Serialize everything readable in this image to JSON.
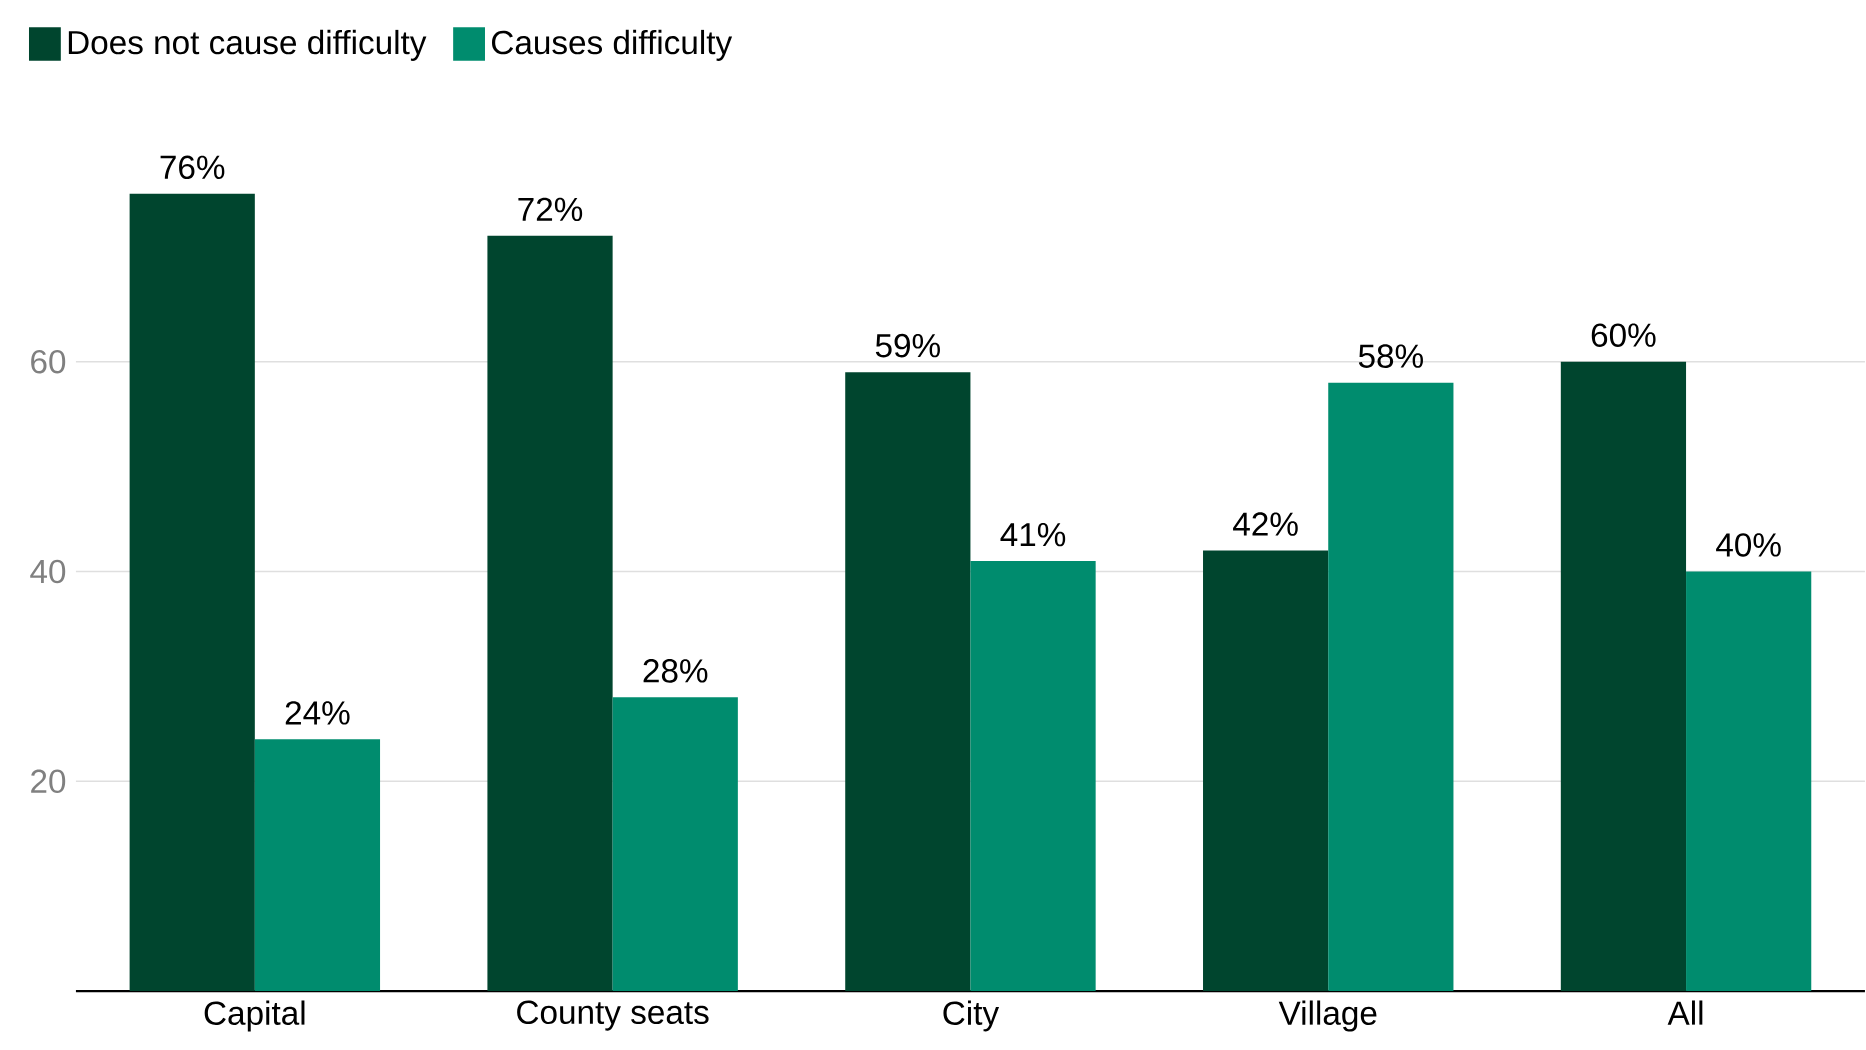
{
  "chart_data": {
    "type": "bar",
    "categories": [
      "Capital",
      "County seats",
      "City",
      "Village",
      "All"
    ],
    "series": [
      {
        "name": "Does not cause difficulty",
        "color": "#00452e",
        "values": [
          76,
          72,
          59,
          42,
          60
        ],
        "value_labels": [
          "76%",
          "72%",
          "59%",
          "42%",
          "60%"
        ]
      },
      {
        "name": "Causes difficulty",
        "color": "#008c6e",
        "values": [
          24,
          28,
          41,
          58,
          40
        ],
        "value_labels": [
          "24%",
          "28%",
          "41%",
          "58%",
          "40%"
        ]
      }
    ],
    "ylim": [
      0,
      76
    ],
    "yticks": [
      20,
      40,
      60
    ],
    "grid": "y",
    "legend": "top left"
  }
}
